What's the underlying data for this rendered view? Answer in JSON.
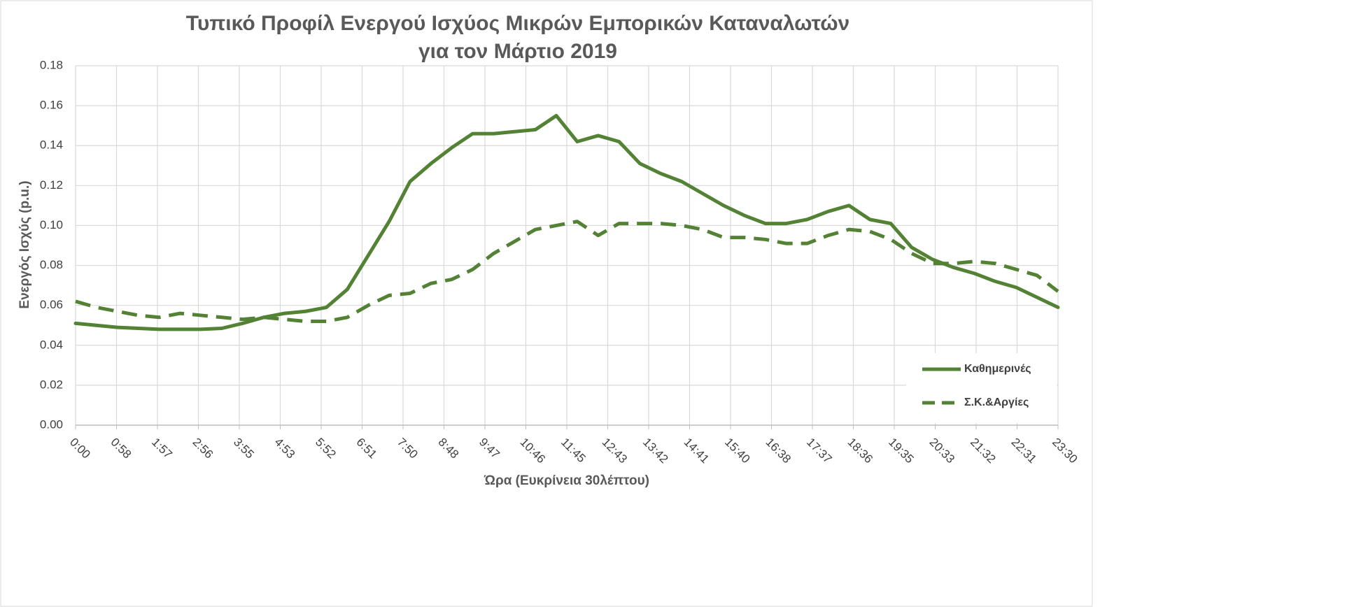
{
  "chart_data": {
    "type": "line",
    "title": "Τυπικό Προφίλ Ενεργού Ισχύος Μικρών Εμπορικών Καταναλωτών για τον Μάρτιο 2019",
    "x_label": "Ώρα (Ευκρίνεια 30λέπτου)",
    "y_label": "Ενεργός Ισχύς (p.u.)",
    "x": [
      0,
      30,
      60,
      90,
      120,
      150,
      180,
      210,
      240,
      270,
      300,
      330,
      360,
      390,
      420,
      450,
      480,
      510,
      540,
      570,
      600,
      630,
      660,
      690,
      720,
      750,
      780,
      810,
      840,
      870,
      900,
      930,
      960,
      990,
      1020,
      1050,
      1080,
      1110,
      1140,
      1170,
      1200,
      1230,
      1260,
      1290,
      1320,
      1350,
      1380,
      1410
    ],
    "series": [
      {
        "name": "Καθημερινές",
        "color": "#548235",
        "dash": false,
        "values": [
          0.051,
          0.05,
          0.049,
          0.0485,
          0.048,
          0.048,
          0.048,
          0.0485,
          0.051,
          0.054,
          0.056,
          0.057,
          0.059,
          0.068,
          0.085,
          0.102,
          0.122,
          0.131,
          0.139,
          0.146,
          0.146,
          0.147,
          0.148,
          0.155,
          0.142,
          0.145,
          0.142,
          0.131,
          0.126,
          0.122,
          0.116,
          0.11,
          0.105,
          0.101,
          0.101,
          0.103,
          0.107,
          0.11,
          0.103,
          0.101,
          0.089,
          0.083,
          0.079,
          0.076,
          0.072,
          0.069,
          0.064,
          0.059
        ]
      },
      {
        "name": "Σ.Κ.&Αργίες",
        "color": "#548235",
        "dash": true,
        "values": [
          0.062,
          0.059,
          0.057,
          0.055,
          0.054,
          0.056,
          0.055,
          0.054,
          0.053,
          0.054,
          0.053,
          0.052,
          0.052,
          0.054,
          0.06,
          0.065,
          0.066,
          0.071,
          0.073,
          0.078,
          0.086,
          0.092,
          0.098,
          0.1,
          0.102,
          0.095,
          0.101,
          0.101,
          0.101,
          0.1,
          0.098,
          0.094,
          0.094,
          0.093,
          0.091,
          0.091,
          0.095,
          0.098,
          0.097,
          0.093,
          0.086,
          0.081,
          0.081,
          0.082,
          0.081,
          0.078,
          0.075,
          0.067
        ]
      }
    ],
    "xlim": [
      0,
      1410
    ],
    "xticks": [
      {
        "value": 0,
        "label": "0:00"
      },
      {
        "value": 58.75,
        "label": "0:58"
      },
      {
        "value": 117.5,
        "label": "1:57"
      },
      {
        "value": 176.25,
        "label": "2:56"
      },
      {
        "value": 235,
        "label": "3:55"
      },
      {
        "value": 293.75,
        "label": "4:53"
      },
      {
        "value": 352.5,
        "label": "5:52"
      },
      {
        "value": 411.25,
        "label": "6:51"
      },
      {
        "value": 470,
        "label": "7:50"
      },
      {
        "value": 528.75,
        "label": "8:48"
      },
      {
        "value": 587.5,
        "label": "9:47"
      },
      {
        "value": 646.25,
        "label": "10:46"
      },
      {
        "value": 705,
        "label": "11:45"
      },
      {
        "value": 763.75,
        "label": "12:43"
      },
      {
        "value": 822.5,
        "label": "13:42"
      },
      {
        "value": 881.25,
        "label": "14:41"
      },
      {
        "value": 940,
        "label": "15:40"
      },
      {
        "value": 998.75,
        "label": "16:38"
      },
      {
        "value": 1057.5,
        "label": "17:37"
      },
      {
        "value": 1116.25,
        "label": "18:36"
      },
      {
        "value": 1175,
        "label": "19:35"
      },
      {
        "value": 1233.75,
        "label": "20:33"
      },
      {
        "value": 1292.5,
        "label": "21:32"
      },
      {
        "value": 1351.25,
        "label": "22:31"
      },
      {
        "value": 1410,
        "label": "23:30"
      }
    ],
    "ylim": [
      0,
      0.18
    ],
    "yticks": [
      {
        "value": 0,
        "label": "0.00"
      },
      {
        "value": 0.02,
        "label": "0.02"
      },
      {
        "value": 0.04,
        "label": "0.04"
      },
      {
        "value": 0.06,
        "label": "0.06"
      },
      {
        "value": 0.08,
        "label": "0.08"
      },
      {
        "value": 0.1,
        "label": "0.10"
      },
      {
        "value": 0.12,
        "label": "0.12"
      },
      {
        "value": 0.14,
        "label": "0.14"
      },
      {
        "value": 0.16,
        "label": "0.16"
      },
      {
        "value": 0.18,
        "label": "0.18"
      }
    ],
    "grid": true,
    "legend": "lower right"
  }
}
